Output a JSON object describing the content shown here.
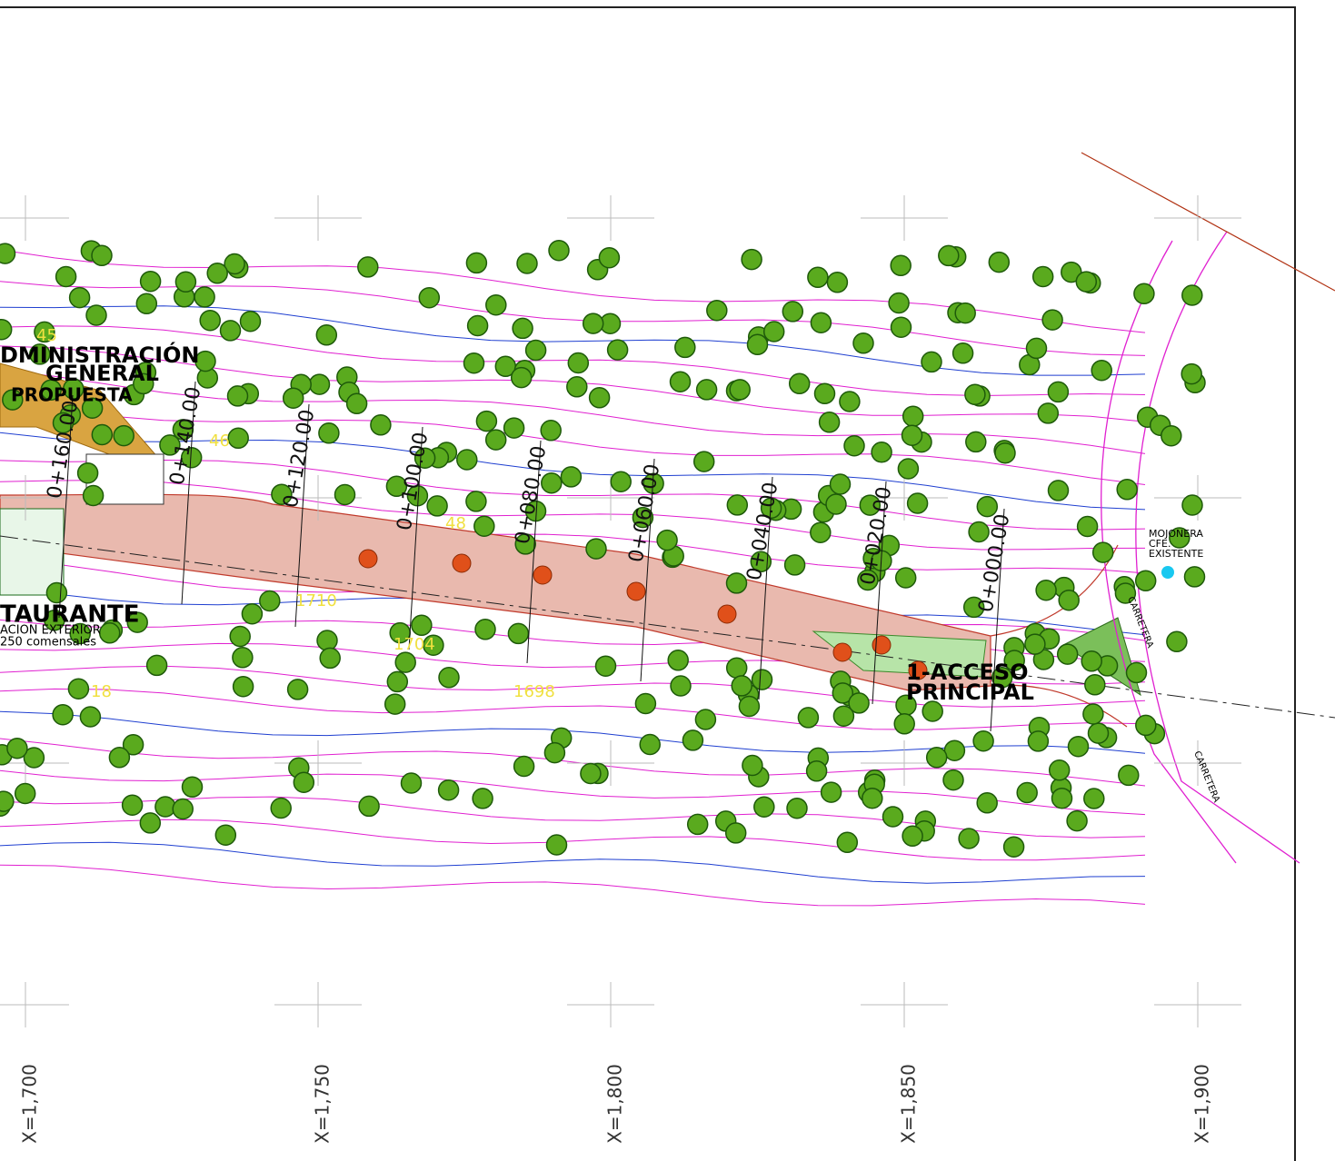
{
  "buildings": [
    {
      "lines": [
        "DMINISTRACIÓN",
        "GENERAL",
        "PROPUESTA"
      ]
    },
    {
      "lines": [
        "TAURANTE",
        "ACION EXTERIOR",
        "250 comensales"
      ]
    }
  ],
  "access": {
    "lines": [
      "1-ACCESO",
      "PRINCIPAL"
    ]
  },
  "landmark": {
    "lines": [
      "MOJONERA",
      "CFE.",
      "EXISTENTE"
    ]
  },
  "road_labels": [
    "CARRETERA",
    "CARRETERA"
  ],
  "stations": [
    "0+160.00",
    "0+140.00",
    "0+120.00",
    "0+100.00",
    "0+080.00",
    "0+060.00",
    "0+040.00",
    "0+020.00",
    "0+000.00"
  ],
  "grid_labels": [
    "X=1,700",
    "X=1,750",
    "X=1,800",
    "X=1,850",
    "X=1,900"
  ],
  "contour_labels": [
    "45",
    "46",
    "48",
    "1710",
    "1704",
    "1698",
    "18"
  ]
}
